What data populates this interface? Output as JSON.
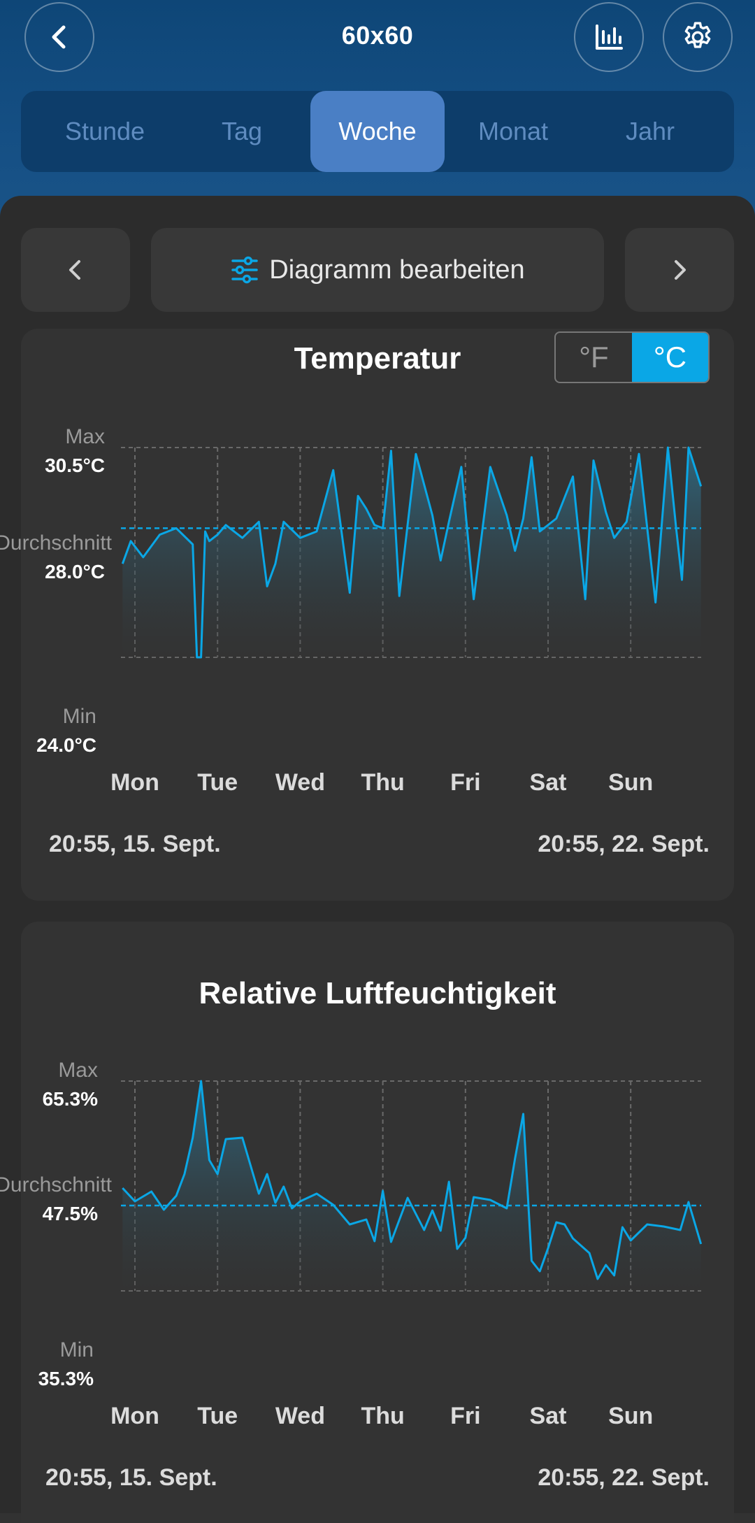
{
  "header": {
    "title": "60x60",
    "icons": [
      "chevron-left-icon",
      "bar-chart-icon",
      "gear-icon"
    ]
  },
  "tabs": [
    {
      "label": "Stunde",
      "active": false
    },
    {
      "label": "Tag",
      "active": false
    },
    {
      "label": "Woche",
      "active": true
    },
    {
      "label": "Monat",
      "active": false
    },
    {
      "label": "Jahr",
      "active": false
    }
  ],
  "nav": {
    "edit_label": "Diagramm bearbeiten"
  },
  "colors": {
    "accent": "#0aa7e6",
    "header_bg": "#154f84",
    "active_tab": "#4a7fc5",
    "card_bg": "#333333"
  },
  "temperature": {
    "title": "Temperatur",
    "unit_f": "°F",
    "unit_c": "°C",
    "unit_selected": "°C",
    "max_label": "Max",
    "max_value": "30.5°C",
    "avg_label": "Durchschnitt",
    "avg_value": "28.0°C",
    "min_label": "Min",
    "min_value": "24.0°C",
    "start_date": "20:55,  15. Sept.",
    "end_date": "20:55,  22. Sept."
  },
  "humidity": {
    "title": "Relative Luftfeuchtigkeit",
    "max_label": "Max",
    "max_value": "65.3%",
    "avg_label": "Durchschnitt",
    "avg_value": "47.5%",
    "min_label": "Min",
    "min_value": "35.3%",
    "start_date": "20:55,  15. Sept.",
    "end_date": "20:55,  22. Sept."
  },
  "chart_data": [
    {
      "type": "area",
      "title": "Temperatur",
      "categories": [
        "Mon",
        "Tue",
        "Wed",
        "Thu",
        "Fri",
        "Sat",
        "Sun"
      ],
      "ylim": [
        24.0,
        30.5
      ],
      "reference_lines": {
        "max": 30.5,
        "avg": 28.0,
        "min": 24.0
      },
      "grid": true,
      "series": [
        {
          "x": [
            -0.15,
            -0.05,
            0.1,
            0.3,
            0.5,
            0.7,
            0.75,
            0.8,
            0.85,
            0.9,
            1.0,
            1.1,
            1.3,
            1.5,
            1.6,
            1.7,
            1.8,
            2.0,
            2.2,
            2.4,
            2.6,
            2.7,
            2.8,
            2.9,
            3.0,
            3.1,
            3.2,
            3.4,
            3.6,
            3.7,
            3.8,
            3.95,
            4.1,
            4.3,
            4.5,
            4.6,
            4.7,
            4.8,
            4.9,
            5.1,
            5.3,
            5.45,
            5.55,
            5.7,
            5.8,
            5.95,
            6.1,
            6.3,
            6.45,
            6.55,
            6.62,
            6.7,
            6.85
          ],
          "values": [
            26.9,
            27.6,
            27.1,
            27.8,
            28.0,
            27.5,
            24.0,
            24.0,
            27.9,
            27.6,
            27.8,
            28.1,
            27.7,
            28.2,
            26.2,
            26.9,
            28.2,
            27.7,
            27.9,
            29.8,
            26.0,
            29.0,
            28.6,
            28.1,
            28.0,
            30.4,
            25.9,
            30.3,
            28.4,
            27.0,
            28.2,
            29.9,
            25.8,
            29.9,
            28.4,
            27.3,
            28.3,
            30.2,
            27.9,
            28.3,
            29.6,
            25.8,
            30.1,
            28.5,
            27.7,
            28.2,
            30.3,
            25.7,
            30.5,
            28.0,
            26.4,
            30.5,
            29.3
          ]
        }
      ]
    },
    {
      "type": "area",
      "title": "Relative Luftfeuchtigkeit",
      "categories": [
        "Mon",
        "Tue",
        "Wed",
        "Thu",
        "Fri",
        "Sat",
        "Sun"
      ],
      "ylim": [
        35.3,
        65.3
      ],
      "reference_lines": {
        "max": 65.3,
        "avg": 47.5,
        "min": 35.3
      },
      "grid": true,
      "series": [
        {
          "x": [
            -0.15,
            0.0,
            0.2,
            0.35,
            0.5,
            0.6,
            0.7,
            0.8,
            0.9,
            1.0,
            1.1,
            1.3,
            1.5,
            1.6,
            1.7,
            1.8,
            1.9,
            2.0,
            2.2,
            2.4,
            2.6,
            2.8,
            2.9,
            3.0,
            3.1,
            3.3,
            3.5,
            3.6,
            3.7,
            3.8,
            3.9,
            4.0,
            4.1,
            4.3,
            4.5,
            4.6,
            4.7,
            4.8,
            4.9,
            5.0,
            5.1,
            5.2,
            5.3,
            5.5,
            5.6,
            5.7,
            5.8,
            5.9,
            6.0,
            6.2,
            6.4,
            6.6,
            6.7,
            6.85
          ],
          "values": [
            50.0,
            48.1,
            49.5,
            46.9,
            48.9,
            52.0,
            57.2,
            65.3,
            54.0,
            52.0,
            57.0,
            57.2,
            49.2,
            52.0,
            47.9,
            50.2,
            47.1,
            48.1,
            49.2,
            47.6,
            44.8,
            45.5,
            42.4,
            49.6,
            42.3,
            48.6,
            44.0,
            46.8,
            43.9,
            50.9,
            41.3,
            42.9,
            48.7,
            48.3,
            47.1,
            54.2,
            60.6,
            39.6,
            38.1,
            41.4,
            45.1,
            44.8,
            42.8,
            40.7,
            37.0,
            39.0,
            37.5,
            44.4,
            42.5,
            44.8,
            44.5,
            44.0,
            48.0,
            42.0
          ]
        }
      ]
    }
  ]
}
